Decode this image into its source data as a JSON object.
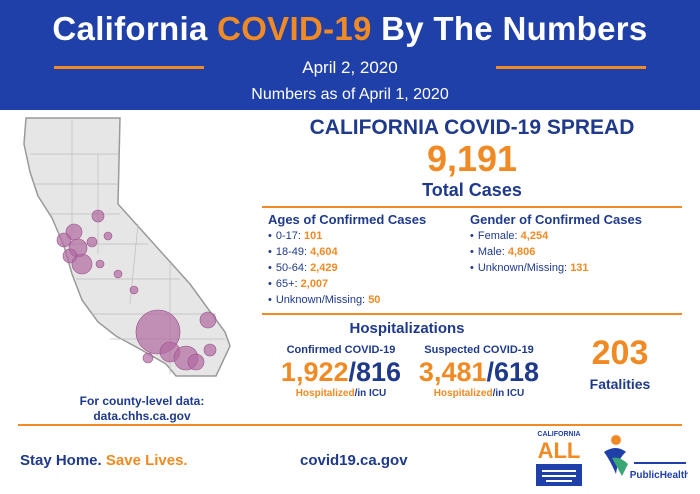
{
  "header": {
    "title_part1": "California ",
    "title_accent": "COVID-19",
    "title_part2": " By The Numbers",
    "date": "April 2, 2020",
    "as_of": "Numbers as of April 1, 2020"
  },
  "spread": {
    "title": "CALIFORNIA COVID-19 SPREAD",
    "total_cases": "9,191",
    "total_label": "Total Cases"
  },
  "ages": {
    "heading": "Ages of Confirmed Cases",
    "items": [
      {
        "label": "0-17:",
        "value": "101"
      },
      {
        "label": "18-49:",
        "value": "4,604"
      },
      {
        "label": "50-64:",
        "value": "2,429"
      },
      {
        "label": "65+:",
        "value": "2,007"
      },
      {
        "label": "Unknown/Missing:",
        "value": "50"
      }
    ]
  },
  "gender": {
    "heading": "Gender of Confirmed Cases",
    "items": [
      {
        "label": "Female:",
        "value": "4,254"
      },
      {
        "label": "Male:",
        "value": "4,806"
      },
      {
        "label": "Unknown/Missing:",
        "value": "131"
      }
    ]
  },
  "hospitalizations": {
    "title": "Hospitalizations",
    "confirmed": {
      "heading": "Confirmed COVID-19",
      "hospitalized": "1,922",
      "icu": "816"
    },
    "suspected": {
      "heading": "Suspected COVID-19",
      "hospitalized": "3,481",
      "icu": "618"
    },
    "hospitalized_label": "Hospitalized",
    "icu_label": "/in ICU",
    "separator": "/"
  },
  "fatalities": {
    "number": "203",
    "label": "Fatalities"
  },
  "county_note": {
    "line1": "For county-level data:",
    "line2": "data.chhs.ca.gov"
  },
  "footer": {
    "slogan_part1": "Stay Home. ",
    "slogan_part2": "Save Lives.",
    "website": "covid19.ca.gov",
    "logo_all_text": "ALL",
    "logo_all_top": "CALIFORNIA",
    "logo_ph_text": "PublicHealth"
  },
  "colors": {
    "brand_blue": "#1f40a8",
    "accent_orange": "#f08a24",
    "map_bubble": "#b06aa0"
  }
}
